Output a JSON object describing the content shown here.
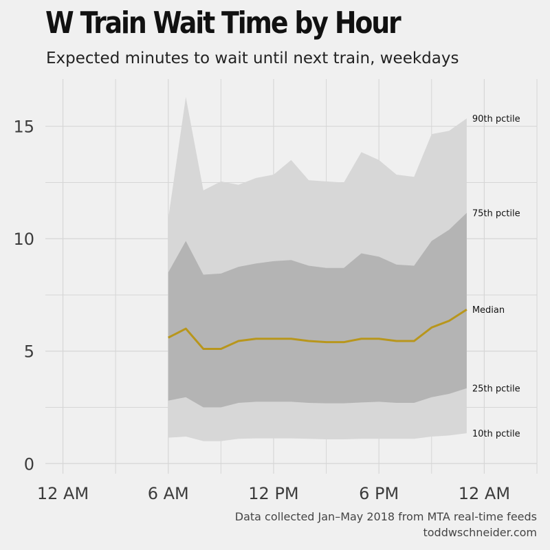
{
  "chart_data": {
    "type": "area",
    "title": "W Train Wait Time by Hour",
    "subtitle": "Expected minutes to wait until next train, weekdays",
    "caption": [
      "Data collected Jan–May 2018 from MTA real-time feeds",
      "toddwschneider.com"
    ],
    "xlabel": "",
    "ylabel": "",
    "x_ticks": [
      {
        "value": 0,
        "label": "12 AM"
      },
      {
        "value": 6,
        "label": "6 AM"
      },
      {
        "value": 12,
        "label": "12 PM"
      },
      {
        "value": 18,
        "label": "6 PM"
      },
      {
        "value": 24,
        "label": "12 AM"
      }
    ],
    "y_ticks": [
      {
        "value": 0,
        "label": "0"
      },
      {
        "value": 5,
        "label": "5"
      },
      {
        "value": 10,
        "label": "10"
      },
      {
        "value": 15,
        "label": "15"
      }
    ],
    "xlim": [
      -1,
      27
    ],
    "ylim": [
      -0.45,
      17.1
    ],
    "grid": true,
    "x": [
      6,
      7,
      8,
      9,
      10,
      11,
      12,
      13,
      14,
      15,
      16,
      17,
      18,
      19,
      20,
      21,
      22,
      23
    ],
    "series": [
      {
        "name": "10th pctile",
        "values": [
          1.15,
          1.2,
          1.0,
          1.0,
          1.1,
          1.12,
          1.12,
          1.12,
          1.1,
          1.08,
          1.08,
          1.1,
          1.1,
          1.1,
          1.1,
          1.2,
          1.25,
          1.35
        ]
      },
      {
        "name": "25th pctile",
        "values": [
          2.8,
          2.95,
          2.5,
          2.5,
          2.7,
          2.75,
          2.75,
          2.75,
          2.7,
          2.68,
          2.68,
          2.72,
          2.75,
          2.7,
          2.7,
          2.95,
          3.1,
          3.35
        ]
      },
      {
        "name": "Median",
        "values": [
          5.6,
          6.0,
          5.1,
          5.1,
          5.45,
          5.55,
          5.55,
          5.55,
          5.45,
          5.4,
          5.4,
          5.55,
          5.55,
          5.45,
          5.45,
          6.05,
          6.35,
          6.85
        ]
      },
      {
        "name": "75th pctile",
        "values": [
          8.5,
          9.9,
          8.4,
          8.45,
          8.75,
          8.9,
          9.0,
          9.05,
          8.8,
          8.7,
          8.7,
          9.35,
          9.2,
          8.85,
          8.8,
          9.9,
          10.4,
          11.15
        ]
      },
      {
        "name": "90th pctile",
        "values": [
          10.9,
          16.3,
          12.15,
          12.55,
          12.4,
          12.7,
          12.85,
          13.5,
          12.6,
          12.55,
          12.5,
          13.85,
          13.5,
          12.85,
          12.75,
          14.65,
          14.8,
          15.35
        ]
      }
    ],
    "colors": {
      "background": "#f0f0f0",
      "outer_band": "#d7d7d7",
      "inner_band": "#b4b4b4",
      "median_line": "#b8961c",
      "grid": "#d6d6d6"
    }
  }
}
